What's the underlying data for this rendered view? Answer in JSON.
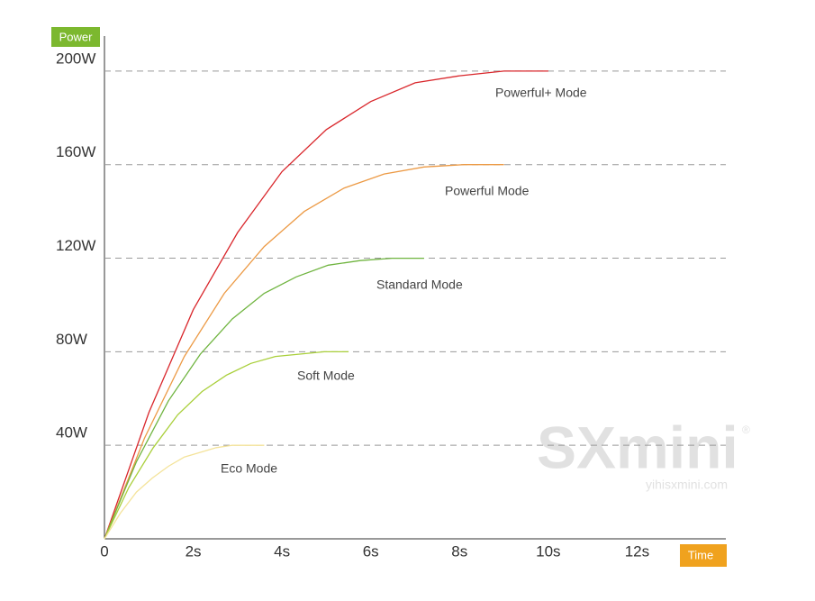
{
  "chart_data": {
    "type": "line",
    "y_label": "Power",
    "x_label": "Time",
    "watermark": {
      "brand": "SXmini",
      "mark": "®",
      "url": "yihisxmini.com"
    },
    "xlim": [
      0,
      14
    ],
    "ylim": [
      0,
      215
    ],
    "xticks": [
      0,
      {
        "value": 2,
        "label": "2s"
      },
      {
        "value": 4,
        "label": "4s"
      },
      {
        "value": 6,
        "label": "6s"
      },
      {
        "value": 8,
        "label": "8s"
      },
      {
        "value": 10,
        "label": "10s"
      },
      {
        "value": 12,
        "label": "12s"
      }
    ],
    "yticks": [
      {
        "value": 40,
        "label": "40W"
      },
      {
        "value": 80,
        "label": "80W"
      },
      {
        "value": 120,
        "label": "120W"
      },
      {
        "value": 160,
        "label": "160W"
      },
      {
        "value": 200,
        "label": "200W"
      }
    ],
    "grid": true,
    "series": [
      {
        "name": "Powerful+ Mode",
        "color": "#d9262b",
        "x": [
          0,
          1,
          2,
          3,
          4,
          5,
          6,
          7,
          8,
          9,
          10
        ],
        "values": [
          0,
          54,
          98,
          131,
          157,
          175,
          187,
          195,
          198,
          200,
          200
        ]
      },
      {
        "name": "Powerful Mode",
        "color": "#ec9a45",
        "x": [
          0,
          0.9,
          1.8,
          2.7,
          3.6,
          4.5,
          5.4,
          6.3,
          7.2,
          8.1,
          9
        ],
        "values": [
          0,
          43,
          78,
          105,
          125,
          140,
          150,
          156,
          159,
          160,
          160
        ]
      },
      {
        "name": "Standard Mode",
        "color": "#6fb43f",
        "x": [
          0,
          0.72,
          1.44,
          2.16,
          2.88,
          3.6,
          4.32,
          5.04,
          5.76,
          6.48,
          7.2
        ],
        "values": [
          0,
          33,
          59,
          79,
          94,
          105,
          112,
          117,
          119,
          120,
          120
        ]
      },
      {
        "name": "Soft Mode",
        "color": "#a9cf3a",
        "x": [
          0,
          0.55,
          1.1,
          1.65,
          2.2,
          2.75,
          3.3,
          3.85,
          4.4,
          4.95,
          5.5
        ],
        "values": [
          0,
          22,
          39,
          53,
          63,
          70,
          75,
          78,
          79,
          80,
          80
        ]
      },
      {
        "name": "Eco Mode",
        "color": "#f4e39a",
        "x": [
          0,
          0.36,
          0.72,
          1.08,
          1.44,
          1.8,
          2.16,
          2.52,
          2.88,
          3.24,
          3.6
        ],
        "values": [
          0,
          11,
          20,
          26,
          31,
          35,
          37,
          39,
          40,
          40,
          40
        ]
      }
    ]
  }
}
